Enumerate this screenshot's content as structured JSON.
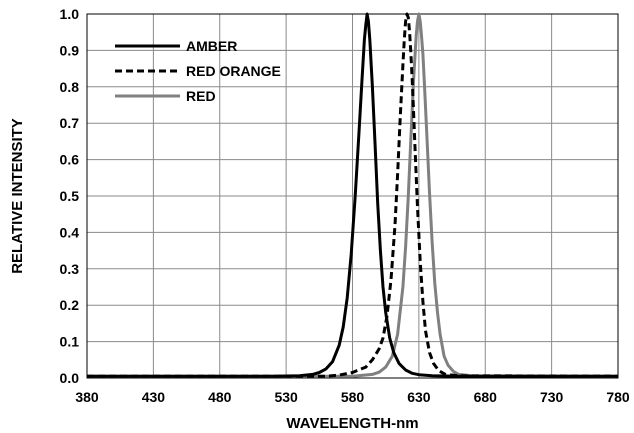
{
  "chart_data": {
    "type": "line",
    "title": "",
    "xlabel": "WAVELENGTH-nm",
    "ylabel": "RELATIVE INTENSITY",
    "xlim": [
      380,
      780
    ],
    "ylim": [
      0,
      1.0
    ],
    "x_ticks": [
      "380",
      "430",
      "480",
      "530",
      "580",
      "630",
      "680",
      "730",
      "780"
    ],
    "y_ticks": [
      "0.0",
      "0.1",
      "0.2",
      "0.3",
      "0.4",
      "0.5",
      "0.6",
      "0.7",
      "0.8",
      "0.9",
      "1.0"
    ],
    "grid": true,
    "legend_position": "top-left",
    "series": [
      {
        "name": "AMBER",
        "color": "#000000",
        "dash": "solid",
        "x": [
          380,
          520,
          540,
          550,
          555,
          560,
          565,
          570,
          573,
          576,
          579,
          582,
          585,
          587,
          589,
          590,
          591,
          592,
          593,
          595,
          597,
          599,
          601,
          603,
          605,
          608,
          611,
          615,
          620,
          625,
          630,
          640,
          660,
          780
        ],
        "y": [
          0.005,
          0.005,
          0.006,
          0.01,
          0.015,
          0.025,
          0.045,
          0.09,
          0.14,
          0.22,
          0.34,
          0.5,
          0.68,
          0.81,
          0.93,
          0.97,
          1.0,
          0.98,
          0.93,
          0.8,
          0.64,
          0.48,
          0.35,
          0.25,
          0.18,
          0.11,
          0.07,
          0.04,
          0.022,
          0.013,
          0.009,
          0.006,
          0.005,
          0.005
        ]
      },
      {
        "name": "RED ORANGE",
        "color": "#000000",
        "dash": "dashed",
        "x": [
          380,
          560,
          570,
          580,
          590,
          595,
          600,
          603,
          606,
          609,
          612,
          614,
          616,
          618,
          619,
          620,
          621,
          622,
          623,
          624,
          625,
          627,
          629,
          631,
          633,
          635,
          638,
          641,
          645,
          650,
          660,
          780
        ],
        "y": [
          0.005,
          0.005,
          0.008,
          0.015,
          0.03,
          0.05,
          0.08,
          0.11,
          0.17,
          0.27,
          0.42,
          0.56,
          0.72,
          0.86,
          0.93,
          0.98,
          1.0,
          0.99,
          0.95,
          0.89,
          0.82,
          0.64,
          0.47,
          0.32,
          0.21,
          0.13,
          0.07,
          0.04,
          0.02,
          0.01,
          0.006,
          0.005
        ]
      },
      {
        "name": "RED",
        "color": "#808080",
        "dash": "solid",
        "x": [
          380,
          580,
          595,
          600,
          605,
          610,
          614,
          618,
          620,
          622,
          624,
          626,
          628,
          629,
          630,
          631,
          632,
          633,
          634,
          636,
          638,
          640,
          642,
          644,
          646,
          649,
          652,
          656,
          660,
          670,
          780
        ],
        "y": [
          0.005,
          0.005,
          0.01,
          0.016,
          0.03,
          0.06,
          0.12,
          0.25,
          0.36,
          0.5,
          0.66,
          0.82,
          0.94,
          0.98,
          1.0,
          0.98,
          0.94,
          0.89,
          0.82,
          0.67,
          0.51,
          0.37,
          0.26,
          0.18,
          0.12,
          0.06,
          0.035,
          0.018,
          0.01,
          0.006,
          0.005
        ]
      }
    ]
  }
}
